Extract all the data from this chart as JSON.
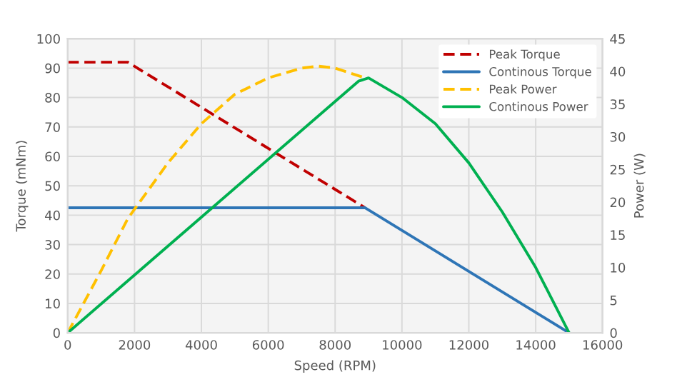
{
  "chart_data": {
    "type": "line",
    "xlabel": "Speed (RPM)",
    "ylabel": "Torque (mNm)",
    "y2label": "Power (W)",
    "xlim": [
      0,
      16000
    ],
    "xticks": [
      0,
      2000,
      4000,
      6000,
      8000,
      10000,
      12000,
      14000,
      16000
    ],
    "ylim": [
      0,
      100
    ],
    "yticks": [
      0,
      10,
      20,
      30,
      40,
      50,
      60,
      70,
      80,
      90,
      100
    ],
    "y2lim": [
      0,
      45
    ],
    "y2ticks": [
      0,
      5,
      10,
      15,
      20,
      25,
      30,
      35,
      40,
      45
    ],
    "grid": true,
    "legend": "top right",
    "series": [
      {
        "name": "Peak Torque",
        "color": "#c00000",
        "line_style": "dashed",
        "x": [
          0,
          1800,
          8900
        ],
        "values": [
          92,
          92,
          42.5
        ]
      },
      {
        "name": "Continous Torque",
        "color": "#2e75b6",
        "line_style": "solid",
        "x": [
          0,
          8900,
          15000
        ],
        "values": [
          42.5,
          42.5,
          0
        ]
      },
      {
        "name": "Peak Power",
        "color": "#ffc000",
        "line_style": "dashed",
        "axis": "y2",
        "x": [
          0,
          1000,
          1800,
          3000,
          4000,
          5000,
          6000,
          7000,
          7500,
          8000,
          8900
        ],
        "values": [
          0,
          9.5,
          17.5,
          26,
          32,
          36.5,
          39,
          40.5,
          40.8,
          40.5,
          39
        ]
      },
      {
        "name": "Continous Power",
        "color": "#00b050",
        "line_style": "solid",
        "axis": "y2",
        "x": [
          0,
          8700,
          9000,
          10000,
          11000,
          12000,
          13000,
          14000,
          15000
        ],
        "values": [
          0,
          38.5,
          39,
          36,
          32,
          26,
          18.5,
          10,
          0
        ]
      }
    ]
  }
}
